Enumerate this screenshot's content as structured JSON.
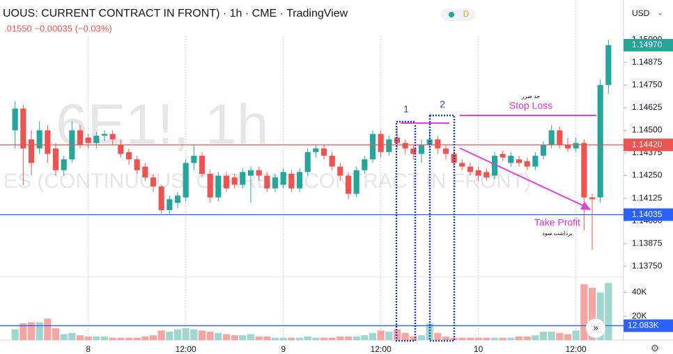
{
  "header": {
    "title": "UOUS: CURRENT CONTRACT IN FRONT) · 1h · CME · TradingView",
    "badge": "D",
    "change": ".01550 −0.00035 (−0.03%)",
    "currency": "USD"
  },
  "chart_data": {
    "type": "candlestick",
    "watermark": "6E1!, 1h",
    "watermark_sub": "ES (CONTINUOUS: CURRENT CONTRACT IN FRONT)",
    "annotations": {
      "box1": "1",
      "box2": "2",
      "stop_loss": "Stop Loss",
      "stop_loss_fa": "حد ضرر",
      "take_profit": "Take Profit",
      "take_profit_fa": "برداشت سود"
    },
    "up_color": "#26a69a",
    "down_color": "#ef5350",
    "up_volume_color": "#9fd6cf",
    "down_volume_color": "#f6a5a3",
    "x": [
      -9,
      -8,
      -7,
      -6,
      -5,
      -4,
      -3,
      -2,
      -1,
      0,
      1,
      2,
      3,
      4,
      5,
      6,
      7,
      8,
      9,
      10,
      11,
      12,
      13,
      14,
      15,
      16,
      17,
      18,
      19,
      20,
      21,
      22,
      23,
      24,
      25,
      26,
      27,
      28,
      29,
      30,
      31,
      32,
      33,
      34,
      35,
      36,
      37,
      38,
      39,
      40,
      41,
      42,
      43,
      44,
      45,
      46,
      47,
      48,
      49,
      50,
      51,
      52,
      53,
      54,
      55,
      56,
      57,
      58,
      59,
      60,
      61,
      62,
      63,
      64
    ],
    "open": [
      1.145,
      1.1462,
      1.1445,
      1.144,
      1.145,
      1.144,
      1.1428,
      1.1434,
      1.145,
      1.1446,
      1.1443,
      1.1447,
      1.1448,
      1.1442,
      1.1438,
      1.1434,
      1.143,
      1.1424,
      1.1419,
      1.1406,
      1.141,
      1.1413,
      1.1432,
      1.1436,
      1.1426,
      1.1413,
      1.1425,
      1.1424,
      1.142,
      1.1425,
      1.1428,
      1.1425,
      1.1418,
      1.142,
      1.1426,
      1.1418,
      1.1427,
      1.1438,
      1.144,
      1.1436,
      1.143,
      1.1425,
      1.1415,
      1.1428,
      1.1434,
      1.1448,
      1.1438,
      1.1446,
      1.1443,
      1.144,
      1.1437,
      1.1442,
      1.1445,
      1.144,
      1.1437,
      1.1432,
      1.143,
      1.1428,
      1.1427,
      1.1425,
      1.1437,
      1.1432,
      1.1434,
      1.1433,
      1.143,
      1.1436,
      1.1442,
      1.145,
      1.1442,
      1.144,
      1.1443,
      1.1413,
      1.1413,
      1.1475
    ],
    "high": [
      1.1466,
      1.1464,
      1.145,
      1.1455,
      1.1453,
      1.1443,
      1.1436,
      1.1455,
      1.1453,
      1.1448,
      1.1449,
      1.145,
      1.145,
      1.1445,
      1.144,
      1.1436,
      1.1432,
      1.1426,
      1.142,
      1.1414,
      1.1416,
      1.1434,
      1.1442,
      1.1438,
      1.1428,
      1.1427,
      1.1427,
      1.1426,
      1.1429,
      1.143,
      1.143,
      1.1427,
      1.1426,
      1.1429,
      1.1428,
      1.1429,
      1.144,
      1.1442,
      1.1442,
      1.1438,
      1.1432,
      1.1427,
      1.143,
      1.1436,
      1.145,
      1.145,
      1.1447,
      1.1452,
      1.1445,
      1.1442,
      1.1445,
      1.145,
      1.1447,
      1.1442,
      1.1439,
      1.1434,
      1.1432,
      1.143,
      1.1429,
      1.1438,
      1.1439,
      1.1438,
      1.1436,
      1.1435,
      1.1438,
      1.1444,
      1.1453,
      1.1452,
      1.1446,
      1.1446,
      1.1445,
      1.1415,
      1.1478,
      1.15
    ],
    "low": [
      1.144,
      1.142,
      1.1425,
      1.1437,
      1.1432,
      1.1425,
      1.1425,
      1.1432,
      1.144,
      1.144,
      1.144,
      1.1444,
      1.1442,
      1.1435,
      1.1431,
      1.1426,
      1.1422,
      1.1416,
      1.1404,
      1.1404,
      1.1407,
      1.1411,
      1.1428,
      1.1424,
      1.141,
      1.1411,
      1.1416,
      1.1418,
      1.1418,
      1.141,
      1.1422,
      1.1416,
      1.1416,
      1.1418,
      1.1416,
      1.1416,
      1.1425,
      1.1435,
      1.1434,
      1.1428,
      1.1422,
      1.1412,
      1.1413,
      1.1426,
      1.1432,
      1.1435,
      1.1436,
      1.144,
      1.1437,
      1.1434,
      1.1432,
      1.144,
      1.1437,
      1.1434,
      1.143,
      1.1428,
      1.1425,
      1.1422,
      1.1422,
      1.1423,
      1.1433,
      1.143,
      1.143,
      1.1428,
      1.1428,
      1.1434,
      1.144,
      1.144,
      1.1438,
      1.1438,
      1.1395,
      1.1384,
      1.141,
      1.147
    ],
    "close": [
      1.1462,
      1.144,
      1.1432,
      1.145,
      1.1437,
      1.1428,
      1.1434,
      1.145,
      1.1442,
      1.1443,
      1.1447,
      1.1448,
      1.1445,
      1.1437,
      1.1434,
      1.1428,
      1.1424,
      1.1419,
      1.1406,
      1.1412,
      1.1414,
      1.1432,
      1.1436,
      1.1426,
      1.1413,
      1.1425,
      1.1418,
      1.142,
      1.1427,
      1.1428,
      1.1425,
      1.1418,
      1.1424,
      1.1427,
      1.1418,
      1.1427,
      1.1438,
      1.144,
      1.1436,
      1.143,
      1.1425,
      1.1415,
      1.1428,
      1.1434,
      1.1448,
      1.1438,
      1.1445,
      1.1443,
      1.144,
      1.1437,
      1.1442,
      1.1445,
      1.144,
      1.1437,
      1.1432,
      1.143,
      1.1427,
      1.1425,
      1.1424,
      1.1436,
      1.1435,
      1.1436,
      1.1432,
      1.143,
      1.1436,
      1.1442,
      1.145,
      1.1442,
      1.144,
      1.1443,
      1.1413,
      1.1412,
      1.1475,
      1.1497
    ],
    "volume": [
      9000,
      14000,
      15000,
      15000,
      18000,
      10000,
      5000,
      6000,
      4000,
      3000,
      3000,
      3000,
      2000,
      2000,
      2000,
      2000,
      3000,
      4000,
      8000,
      7000,
      9000,
      10000,
      9000,
      8000,
      7000,
      6000,
      5000,
      4000,
      4000,
      5000,
      3000,
      3000,
      2000,
      2000,
      2000,
      2000,
      3000,
      2000,
      2000,
      2000,
      3000,
      3000,
      3000,
      4000,
      6000,
      8000,
      7000,
      9000,
      6000,
      3000,
      4000,
      14000,
      6000,
      3000,
      2000,
      2000,
      2000,
      2000,
      2000,
      2000,
      2000,
      2000,
      3000,
      3000,
      4000,
      7000,
      7000,
      6000,
      5000,
      8000,
      47000,
      44000,
      40000,
      48000
    ],
    "xlim": [
      -10,
      65
    ],
    "xticks": [
      {
        "value": 0,
        "label": "8"
      },
      {
        "value": 12,
        "label": "12:00"
      },
      {
        "value": 24,
        "label": "9"
      },
      {
        "value": 36,
        "label": "12:00"
      },
      {
        "value": 48,
        "label": "10"
      },
      {
        "value": 60,
        "label": "12:00"
      }
    ],
    "ylim": [
      1.13692,
      1.15219
    ],
    "yticks": [
      {
        "value": 1.1375,
        "label": "1.13750"
      },
      {
        "value": 1.13875,
        "label": "1.13875"
      },
      {
        "value": 1.14,
        "label": "1.14000"
      },
      {
        "value": 1.14125,
        "label": "1.14125"
      },
      {
        "value": 1.1425,
        "label": "1.14250"
      },
      {
        "value": 1.14375,
        "label": "1.14375"
      },
      {
        "value": 1.145,
        "label": "1.14500"
      },
      {
        "value": 1.14625,
        "label": "1.14625"
      },
      {
        "value": 1.1475,
        "label": "1.14750"
      },
      {
        "value": 1.14875,
        "label": "1.14875"
      },
      {
        "value": 1.15,
        "label": "1.15000"
      }
    ],
    "volume_ylim": [
      0,
      52000
    ],
    "volume_yticks": [
      {
        "value": 20000,
        "label": "20K"
      },
      {
        "value": 40000,
        "label": "40K"
      }
    ],
    "price_lines": [
      {
        "value": 1.1442,
        "label": "1.14420",
        "color": "#ef5350"
      },
      {
        "value": 1.14035,
        "label": "1.14035",
        "color": "#2962ff"
      }
    ],
    "last_price": {
      "value": 1.1497,
      "label": "1.14970",
      "color": "#26a69a"
    },
    "volume_line": {
      "value": 12083,
      "label": "12.083K",
      "color": "#2962ff"
    }
  }
}
